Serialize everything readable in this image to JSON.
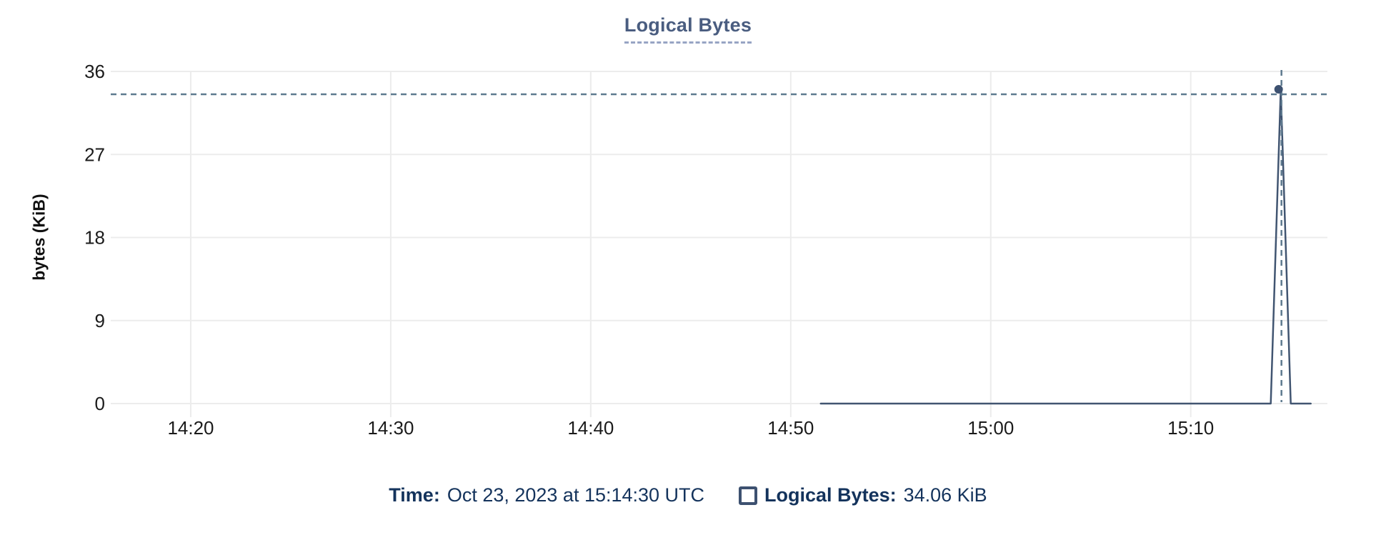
{
  "title": "Logical Bytes",
  "chart_data": {
    "type": "line",
    "title": "Logical Bytes",
    "xlabel": "",
    "ylabel": "bytes (KiB)",
    "x_ticks": [
      "14:20",
      "14:30",
      "14:40",
      "14:50",
      "15:00",
      "15:10"
    ],
    "y_ticks": [
      0,
      9,
      18,
      27,
      36
    ],
    "ylim": [
      0,
      36
    ],
    "x_range": [
      "14:16:00",
      "15:16:50"
    ],
    "grid": true,
    "legend_position": "bottom",
    "series": [
      {
        "name": "Logical Bytes",
        "color": "#415571",
        "points": [
          {
            "time": "14:51:30",
            "value": 0
          },
          {
            "time": "15:14:00",
            "value": 0
          },
          {
            "time": "15:14:30",
            "value": 34.06
          },
          {
            "time": "15:15:00",
            "value": 0
          },
          {
            "time": "15:16:00",
            "value": 0
          }
        ]
      }
    ],
    "hover_point": {
      "series": "Logical Bytes",
      "time": "15:14:30",
      "value": 34.06
    }
  },
  "tooltip": {
    "time_label": "Time:",
    "time_value": "Oct 23, 2023 at 15:14:30 UTC",
    "series_label": "Logical Bytes:",
    "series_value": "34.06 KiB"
  },
  "colors": {
    "series_line": "#415571",
    "hover_dot": "#3d5170",
    "crosshair": "#5e7a8f",
    "gridline": "#ececec",
    "title_text": "#4a5d80",
    "title_underline": "#97a4c4",
    "tooltip_text": "#14335c",
    "tick_text": "#1b1b1b"
  }
}
